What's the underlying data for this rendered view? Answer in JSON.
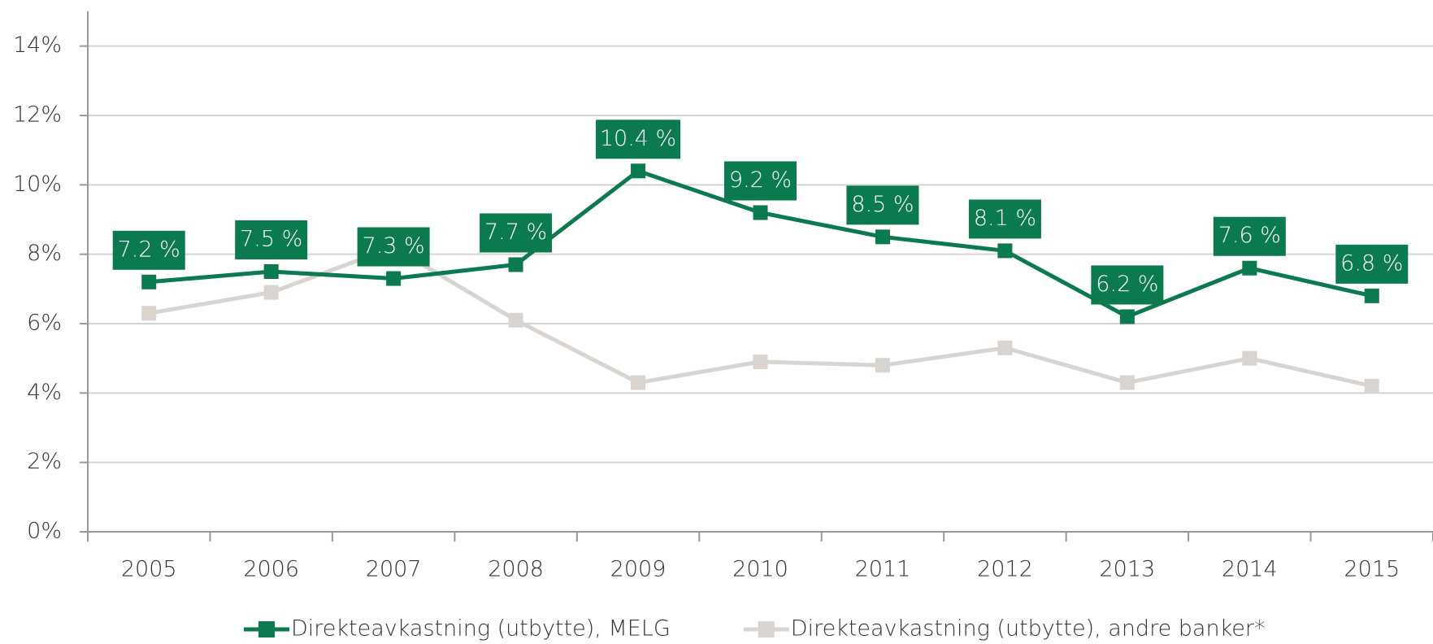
{
  "chart_data": {
    "type": "line",
    "categories": [
      "2005",
      "2006",
      "2007",
      "2008",
      "2009",
      "2010",
      "2011",
      "2012",
      "2013",
      "2014",
      "2015"
    ],
    "series": [
      {
        "name": "Direkteavkastning (utbytte), MELG",
        "color": "#0b7a4f",
        "values": [
          7.2,
          7.5,
          7.3,
          7.7,
          10.4,
          9.2,
          8.5,
          8.1,
          6.2,
          7.6,
          6.8
        ],
        "value_labels": [
          "7.2 %",
          "7.5 %",
          "7.3 %",
          "7.7 %",
          "10.4 %",
          "9.2 %",
          "8.5 %",
          "8.1 %",
          "6.2 %",
          "7.6 %",
          "6.8 %"
        ]
      },
      {
        "name": "Direkteavkastning (utbytte), andre banker*",
        "color": "#d9d4cf",
        "values": [
          6.3,
          6.9,
          8.2,
          6.1,
          4.3,
          4.9,
          4.8,
          5.3,
          4.3,
          5.0,
          4.2
        ]
      }
    ],
    "ylim": [
      0,
      15
    ],
    "yticks": [
      {
        "value": 0,
        "label": "0%"
      },
      {
        "value": 2,
        "label": "2%"
      },
      {
        "value": 4,
        "label": "4%"
      },
      {
        "value": 6,
        "label": "6%"
      },
      {
        "value": 8,
        "label": "8%"
      },
      {
        "value": 10,
        "label": "10%"
      },
      {
        "value": 12,
        "label": "12%"
      },
      {
        "value": 14,
        "label": "14%"
      }
    ],
    "grid": true,
    "legend": "bottom"
  }
}
